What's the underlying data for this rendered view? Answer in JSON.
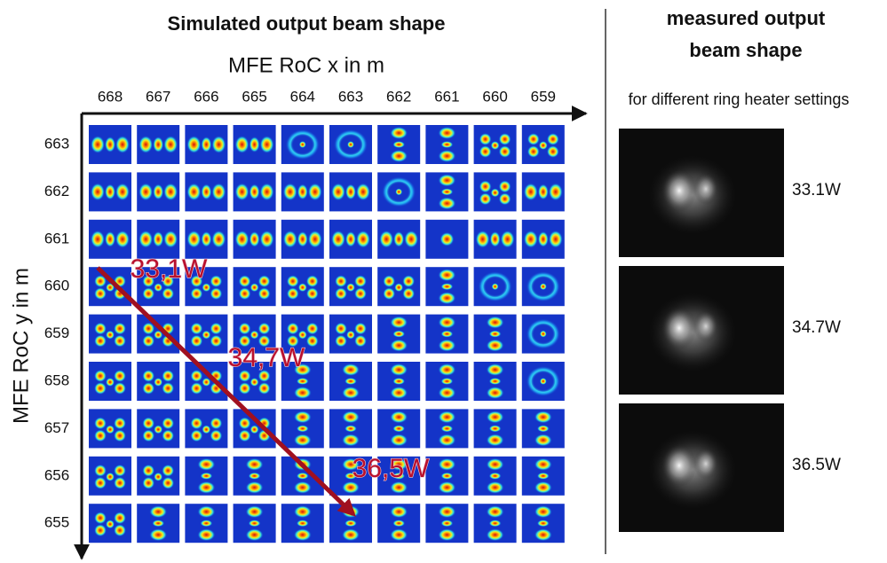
{
  "header": {
    "title": "Simulated output beam shape",
    "x_axis_label": "MFE RoC x in m",
    "y_axis_label": "MFE RoC y in m"
  },
  "columns": [
    "668",
    "667",
    "666",
    "665",
    "664",
    "663",
    "662",
    "661",
    "660",
    "659"
  ],
  "rows": [
    "663",
    "662",
    "661",
    "660",
    "659",
    "658",
    "657",
    "656",
    "655"
  ],
  "annotations": [
    "33,1W",
    "34,7W",
    "36,5W"
  ],
  "measured": {
    "title_line1": "measured output",
    "title_line2": "beam shape",
    "subtitle": "for different ring heater settings",
    "labels": [
      "33.1W",
      "34.7W",
      "36.5W"
    ]
  }
}
